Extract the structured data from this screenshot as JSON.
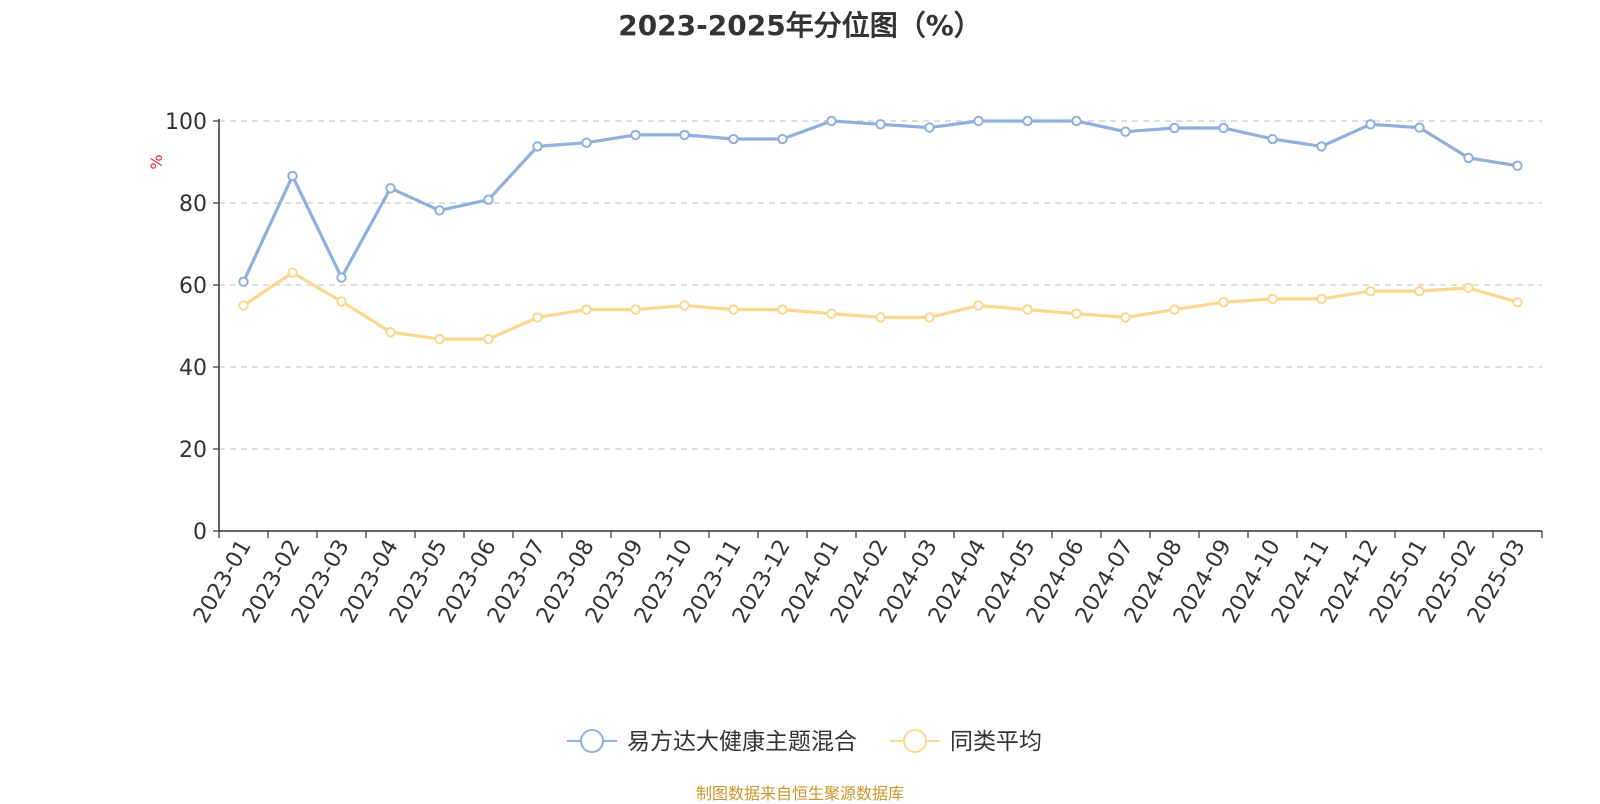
{
  "chart_data": {
    "type": "line",
    "title": "2023-2025年分位图（%）",
    "ylabel": "%",
    "xlabel": "",
    "ylim": [
      0,
      100
    ],
    "yticks": [
      0,
      20,
      40,
      60,
      80,
      100
    ],
    "grid": "horizontal dashed",
    "legend_position": "bottom-center",
    "categories": [
      "2023-01",
      "2023-02",
      "2023-03",
      "2023-04",
      "2023-05",
      "2023-06",
      "2023-07",
      "2023-08",
      "2023-09",
      "2023-10",
      "2023-11",
      "2023-12",
      "2024-01",
      "2024-02",
      "2024-03",
      "2024-04",
      "2024-05",
      "2024-06",
      "2024-07",
      "2024-08",
      "2024-09",
      "2024-10",
      "2024-11",
      "2024-12",
      "2025-01",
      "2025-02",
      "2025-03"
    ],
    "series": [
      {
        "name": "易方达大健康主题混合",
        "color": "#8eb0dc",
        "values": [
          60.8,
          86.6,
          61.8,
          83.6,
          78.2,
          80.8,
          93.8,
          94.7,
          96.6,
          96.6,
          95.6,
          95.6,
          100,
          99.2,
          98.4,
          100,
          100,
          100,
          97.4,
          98.3,
          98.3,
          95.6,
          93.8,
          99.2,
          98.4,
          91,
          89.1
        ]
      },
      {
        "name": "同类平均",
        "color": "#fad890",
        "values": [
          55,
          63,
          56,
          48.5,
          46.8,
          46.8,
          52.1,
          54,
          54,
          55,
          54,
          54,
          53,
          52.1,
          52.1,
          55,
          54,
          53,
          52.1,
          54,
          55.8,
          56.6,
          56.6,
          58.5,
          58.5,
          59.3,
          55.8
        ]
      }
    ]
  },
  "footer": {
    "source": "制图数据来自恒生聚源数据库"
  }
}
